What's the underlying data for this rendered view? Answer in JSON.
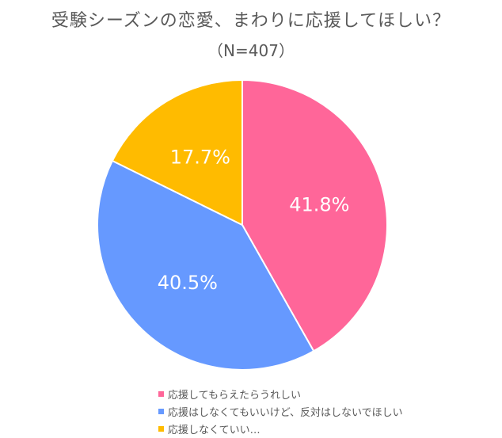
{
  "chart_data": {
    "type": "pie",
    "title": "受験シーズンの恋愛、まわりに応援してほしい？",
    "subtitle": "（N=407）",
    "categories": [
      "応援してもらえたらうれしい",
      "応援はしなくてもいいけど、反対はしないでほしい",
      "応援しなくていい…"
    ],
    "values": [
      41.8,
      40.5,
      17.7
    ],
    "labels": [
      "41.8%",
      "40.5%",
      "17.7%"
    ],
    "colors": [
      "#ff6699",
      "#6699ff",
      "#ffbb00"
    ],
    "legend_position": "bottom",
    "start_angle_deg": 0,
    "direction": "clockwise"
  },
  "legend": {
    "items": [
      {
        "label": "応援してもらえたらうれしい",
        "color": "#ff6699"
      },
      {
        "label": "応援はしなくてもいいけど、反対はしないでほしい",
        "color": "#6699ff"
      },
      {
        "label": "応援しなくていい…",
        "color": "#ffbb00"
      }
    ]
  }
}
